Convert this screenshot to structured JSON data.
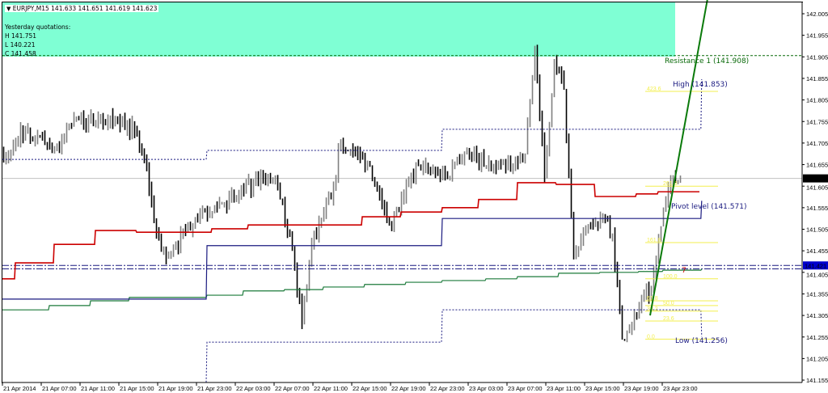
{
  "header": {
    "symbol_line": "EURJPY,M15  141.633 141.651 141.619 141.623",
    "yesterday_title": "Yesterday quotations:",
    "yesterday_high": "H 141.751",
    "yesterday_low": "L 140.221",
    "yesterday_close": "C 141.458"
  },
  "colors": {
    "background": "#ffffff",
    "info_box": "#7fffd4",
    "bar_down": "#000000",
    "bar_up": "#808080",
    "ma_red": "#cc0000",
    "pivot_blue": "#1a1a80",
    "ma_green": "#1b7a3a",
    "trend_line": "#0a7a0a",
    "fib": "#f3ef4f",
    "resistance": "#0a6a0a",
    "price_label_current": "#000000",
    "price_label_level": "#0000cc"
  },
  "chart_data": {
    "type": "bar",
    "style": "ohlc-bars",
    "timeframe": "M15",
    "symbol": "EURJPY",
    "ylim": [
      141.155,
      142.03
    ],
    "y_ticks": [
      "142.005",
      "141.955",
      "141.905",
      "141.855",
      "141.805",
      "141.755",
      "141.705",
      "141.655",
      "141.605",
      "141.555",
      "141.505",
      "141.455",
      "141.405",
      "141.355",
      "141.305",
      "141.255",
      "141.205",
      "141.155"
    ],
    "x_ticks": [
      "21 Apr 2014",
      "21 Apr 07:00",
      "21 Apr 11:00",
      "21 Apr 15:00",
      "21 Apr 19:00",
      "21 Apr 23:00",
      "22 Apr 03:00",
      "22 Apr 07:00",
      "22 Apr 11:00",
      "22 Apr 15:00",
      "22 Apr 19:00",
      "22 Apr 23:00",
      "23 Apr 03:00",
      "23 Apr 07:00",
      "23 Apr 11:00",
      "23 Apr 15:00",
      "23 Apr 19:00",
      "23 Apr 23:00"
    ],
    "start_time": "21 Apr 00:00",
    "hourly_close": [
      141.68,
      141.737,
      141.718,
      141.722,
      141.699,
      141.69,
      141.746,
      141.759,
      141.755,
      141.765,
      141.755,
      141.759,
      141.746,
      141.727,
      141.643,
      141.493,
      141.437,
      141.465,
      141.502,
      141.53,
      141.545,
      141.558,
      141.568,
      141.577,
      141.596,
      141.609,
      141.62,
      141.615,
      141.568,
      141.455,
      141.286,
      141.474,
      141.53,
      141.577,
      141.709,
      141.69,
      141.671,
      141.652,
      141.587,
      141.521,
      141.549,
      141.615,
      141.652,
      141.643,
      141.634,
      141.624,
      141.671,
      141.69,
      141.671,
      141.652,
      141.643,
      141.652,
      141.662,
      141.68,
      141.924,
      141.624,
      141.896,
      141.83,
      141.437,
      141.493,
      141.512,
      141.54,
      141.493,
      141.249,
      141.286,
      141.343,
      141.361,
      141.512,
      141.615,
      141.623
    ],
    "current_price": "141.623",
    "level_price": "141.421",
    "red_line": [
      [
        "21 Apr 00:00",
        141.39
      ],
      [
        "21 Apr 01:15",
        141.427
      ],
      [
        "21 Apr 05:15",
        141.47
      ],
      [
        "21 Apr 09:30",
        141.502
      ],
      [
        "21 Apr 13:45",
        141.498
      ],
      [
        "21 Apr 21:30",
        141.506
      ],
      [
        "22 Apr 01:15",
        141.515
      ],
      [
        "22 Apr 13:00",
        141.534
      ],
      [
        "22 Apr 17:00",
        141.545
      ],
      [
        "22 Apr 21:15",
        141.555
      ],
      [
        "23 Apr 01:00",
        141.574
      ],
      [
        "23 Apr 05:00",
        141.613
      ],
      [
        "23 Apr 09:00",
        141.609
      ],
      [
        "23 Apr 13:00",
        141.581
      ],
      [
        "23 Apr 17:15",
        141.587
      ],
      [
        "23 Apr 19:30",
        141.592
      ],
      [
        "23 Apr 23:45",
        141.592
      ]
    ],
    "blue_line": [
      [
        "21 Apr 00:00",
        141.343
      ],
      [
        "21 Apr 21:00",
        141.467
      ],
      [
        "22 Apr 21:15",
        141.53
      ],
      [
        "23 Apr 23:45",
        141.53
      ],
      [
        "23 Apr 23:59",
        141.571
      ]
    ],
    "green_line": [
      [
        "21 Apr 00:00",
        141.318
      ],
      [
        "21 Apr 04:45",
        141.328
      ],
      [
        "21 Apr 09:00",
        141.339
      ],
      [
        "21 Apr 13:00",
        141.347
      ],
      [
        "21 Apr 21:00",
        141.352
      ],
      [
        "22 Apr 00:45",
        141.362
      ],
      [
        "22 Apr 05:00",
        141.365
      ],
      [
        "22 Apr 09:00",
        141.371
      ],
      [
        "22 Apr 13:15",
        141.377
      ],
      [
        "22 Apr 17:30",
        141.382
      ],
      [
        "22 Apr 21:15",
        141.386
      ],
      [
        "23 Apr 01:45",
        141.39
      ],
      [
        "23 Apr 05:00",
        141.395
      ],
      [
        "23 Apr 09:15",
        141.403
      ],
      [
        "23 Apr 13:30",
        141.405
      ],
      [
        "23 Apr 17:30",
        141.407
      ],
      [
        "23 Apr 20:00",
        141.41
      ],
      [
        "23 Apr 23:59",
        141.413
      ]
    ],
    "dotted_upper": [
      [
        "21 Apr 00:00",
        141.667
      ],
      [
        "21 Apr 21:00",
        141.688
      ],
      [
        "22 Apr 21:15",
        141.737
      ],
      [
        "23 Apr 23:45",
        141.737
      ],
      [
        "23 Apr 23:59",
        141.853
      ]
    ],
    "dotted_lower": [
      [
        "21 Apr 21:00",
        141.15
      ],
      [
        "21 Apr 21:00",
        141.243
      ],
      [
        "22 Apr 21:15",
        141.318
      ],
      [
        "23 Apr 23:45",
        141.318
      ],
      [
        "23 Apr 23:59",
        141.256
      ]
    ],
    "resistance_1": 141.908,
    "double_lines": [
      141.421,
      141.413
    ],
    "trend_line": [
      [
        "23 Apr 18:45",
        141.305
      ],
      [
        "23 Apr 24:45",
        142.05
      ]
    ],
    "fibonacci": {
      "from_time": "23 Apr 18:15",
      "to_time": "23 Apr 25:45",
      "levels": [
        {
          "label": "423.6",
          "price": 141.825
        },
        {
          "label": "261.8",
          "price": 141.605
        },
        {
          "label": "161.8",
          "price": 141.474
        },
        {
          "label": "100.0",
          "price": 141.39
        },
        {
          "label": "61.8",
          "price": 141.339
        },
        {
          "label": "50.0",
          "price": 141.328
        },
        {
          "label": "38.2",
          "price": 141.315
        },
        {
          "label": "23.6",
          "price": 141.292
        },
        {
          "label": "0.0",
          "price": 141.25
        }
      ]
    },
    "annotations": {
      "resistance": "Resistance 1 (141.908)",
      "high": "High (141.853)",
      "pivot": "Pivot level (141.571)",
      "low": "Low (141.256)",
      "marker": "7"
    }
  }
}
